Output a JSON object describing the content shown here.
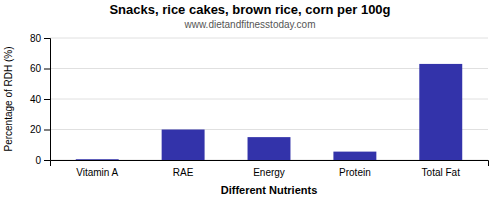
{
  "chart_data": {
    "type": "bar",
    "title": "Snacks, rice cakes, brown rice, corn per 100g",
    "subtitle": "www.dietandfitnesstoday.com",
    "xlabel": "Different Nutrients",
    "ylabel": "Percentage of RDH (%)",
    "categories": [
      "Vitamin A",
      "RAE",
      "Energy",
      "Protein",
      "Total Fat"
    ],
    "values": [
      0.5,
      20,
      15,
      5.5,
      63
    ],
    "color": "#3333aa",
    "ylim": [
      0,
      80
    ],
    "yticks": [
      0,
      20,
      40,
      60,
      80
    ],
    "grid": true
  }
}
